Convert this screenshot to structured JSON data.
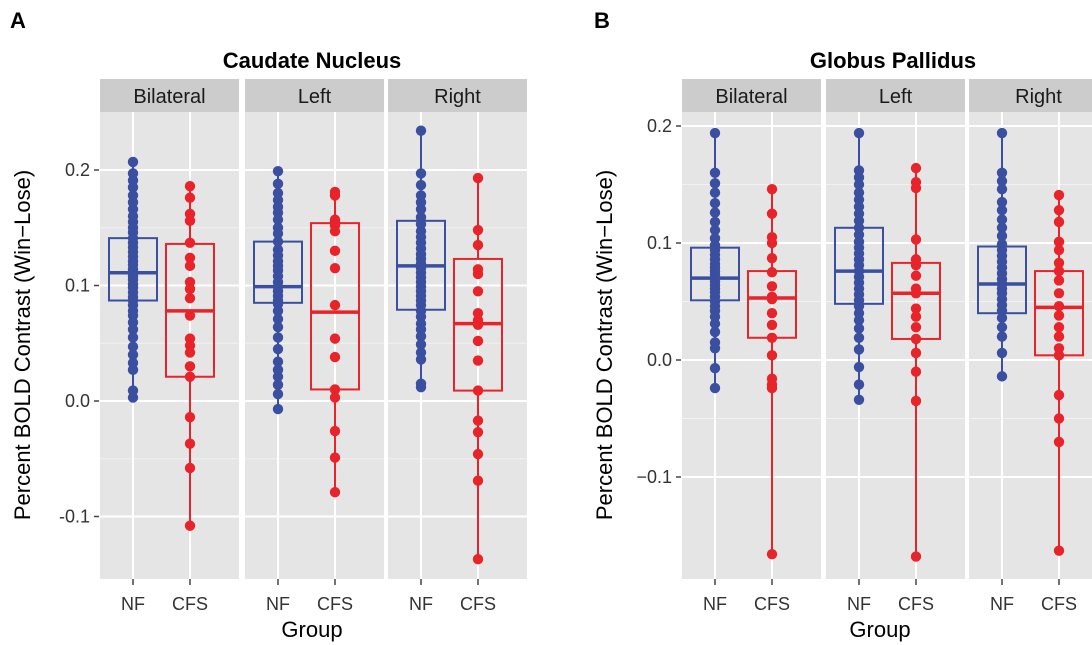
{
  "panel_labels": [
    "A",
    "B"
  ],
  "chart_data": [
    {
      "type": "boxplot",
      "panel_label": "A",
      "title": "Caudate Nucleus",
      "xlabel": "Group",
      "ylabel": "Percent BOLD Contrast (Win−Lose)",
      "ylim": [
        -0.155,
        0.25
      ],
      "yticks": [
        -0.1,
        0.0,
        0.1,
        0.2
      ],
      "ytick_labels": [
        "-0.1",
        "0.0",
        "0.1",
        "0.2"
      ],
      "categories": [
        "NF",
        "CFS"
      ],
      "colors": {
        "NF": "#3a4fa0",
        "CFS": "#e8232a"
      },
      "grid": true,
      "facets": [
        {
          "label": "Bilateral",
          "boxes": {
            "NF": {
              "min": 0.003,
              "q1": 0.087,
              "median": 0.111,
              "q3": 0.141,
              "max": 0.207
            },
            "CFS": {
              "min": -0.108,
              "q1": 0.021,
              "median": 0.078,
              "q3": 0.136,
              "max": 0.186
            }
          },
          "points": {
            "NF": [
              0.207,
              0.197,
              0.191,
              0.185,
              0.178,
              0.172,
              0.166,
              0.16,
              0.155,
              0.15,
              0.146,
              0.141,
              0.137,
              0.133,
              0.129,
              0.125,
              0.121,
              0.118,
              0.114,
              0.111,
              0.108,
              0.105,
              0.101,
              0.098,
              0.094,
              0.09,
              0.087,
              0.083,
              0.078,
              0.074,
              0.068,
              0.062,
              0.055,
              0.047,
              0.04,
              0.033,
              0.027,
              0.009,
              0.003
            ],
            "CFS": [
              0.186,
              0.176,
              0.162,
              0.156,
              0.137,
              0.124,
              0.117,
              0.103,
              0.097,
              0.089,
              0.074,
              0.054,
              0.048,
              0.042,
              0.03,
              0.021,
              -0.014,
              -0.037,
              -0.058,
              -0.108
            ]
          }
        },
        {
          "label": "Left",
          "boxes": {
            "NF": {
              "min": -0.007,
              "q1": 0.085,
              "median": 0.099,
              "q3": 0.138,
              "max": 0.199
            },
            "CFS": {
              "min": -0.079,
              "q1": 0.01,
              "median": 0.077,
              "q3": 0.154,
              "max": 0.181
            }
          },
          "points": {
            "NF": [
              0.199,
              0.188,
              0.18,
              0.174,
              0.168,
              0.163,
              0.157,
              0.15,
              0.145,
              0.138,
              0.131,
              0.126,
              0.121,
              0.117,
              0.113,
              0.108,
              0.103,
              0.099,
              0.095,
              0.091,
              0.087,
              0.084,
              0.078,
              0.071,
              0.064,
              0.055,
              0.045,
              0.034,
              0.027,
              0.021,
              0.014,
              0.006,
              -0.007
            ],
            "CFS": [
              0.181,
              0.178,
              0.157,
              0.155,
              0.152,
              0.147,
              0.13,
              0.115,
              0.083,
              0.054,
              0.038,
              0.01,
              0.003,
              -0.026,
              -0.049,
              -0.079
            ]
          }
        },
        {
          "label": "Right",
          "boxes": {
            "NF": {
              "min": 0.012,
              "q1": 0.079,
              "median": 0.117,
              "q3": 0.156,
              "max": 0.234
            },
            "CFS": {
              "min": -0.137,
              "q1": 0.009,
              "median": 0.067,
              "q3": 0.123,
              "max": 0.193
            }
          },
          "points": {
            "NF": [
              0.234,
              0.197,
              0.187,
              0.178,
              0.172,
              0.166,
              0.159,
              0.153,
              0.147,
              0.142,
              0.137,
              0.132,
              0.127,
              0.123,
              0.119,
              0.115,
              0.111,
              0.107,
              0.103,
              0.099,
              0.095,
              0.091,
              0.087,
              0.083,
              0.078,
              0.073,
              0.067,
              0.062,
              0.056,
              0.049,
              0.042,
              0.036,
              0.015,
              0.012
            ],
            "CFS": [
              0.193,
              0.148,
              0.135,
              0.114,
              0.11,
              0.095,
              0.076,
              0.07,
              0.066,
              0.052,
              0.035,
              0.009,
              -0.017,
              -0.027,
              -0.046,
              -0.069,
              -0.137
            ]
          }
        }
      ]
    },
    {
      "type": "boxplot",
      "panel_label": "B",
      "title": "Globus Pallidus",
      "xlabel": "Group",
      "ylabel": "Percent BOLD Contrast (Win−Lose)",
      "ylim": [
        -0.19,
        0.22
      ],
      "yticks": [
        -0.1,
        0.0,
        0.1,
        0.2
      ],
      "ytick_labels": [
        "−0.1",
        "0.0",
        "0.1",
        "0.2"
      ],
      "categories": [
        "NF",
        "CFS"
      ],
      "colors": {
        "NF": "#3a4fa0",
        "CFS": "#e8232a"
      },
      "grid": true,
      "facets": [
        {
          "label": "Bilateral",
          "boxes": {
            "NF": {
              "min": -0.024,
              "q1": 0.051,
              "median": 0.07,
              "q3": 0.096,
              "max": 0.194
            },
            "CFS": {
              "min": -0.166,
              "q1": 0.019,
              "median": 0.053,
              "q3": 0.076,
              "max": 0.146
            }
          },
          "points": {
            "NF": [
              0.194,
              0.16,
              0.151,
              0.143,
              0.134,
              0.126,
              0.118,
              0.111,
              0.104,
              0.098,
              0.094,
              0.09,
              0.086,
              0.082,
              0.079,
              0.076,
              0.073,
              0.07,
              0.067,
              0.064,
              0.061,
              0.058,
              0.054,
              0.05,
              0.046,
              0.042,
              0.037,
              0.031,
              0.024,
              0.015,
              0.01,
              -0.007,
              -0.024
            ],
            "CFS": [
              0.146,
              0.125,
              0.105,
              0.1,
              0.087,
              0.075,
              0.063,
              0.054,
              0.052,
              0.04,
              0.03,
              0.019,
              0.004,
              -0.016,
              -0.021,
              -0.024,
              -0.166
            ]
          }
        },
        {
          "label": "Left",
          "boxes": {
            "NF": {
              "min": -0.034,
              "q1": 0.048,
              "median": 0.076,
              "q3": 0.113,
              "max": 0.194
            },
            "CFS": {
              "min": -0.168,
              "q1": 0.018,
              "median": 0.057,
              "q3": 0.083,
              "max": 0.164
            }
          },
          "points": {
            "NF": [
              0.194,
              0.162,
              0.156,
              0.15,
              0.143,
              0.137,
              0.131,
              0.125,
              0.119,
              0.113,
              0.107,
              0.101,
              0.096,
              0.091,
              0.086,
              0.081,
              0.076,
              0.071,
              0.066,
              0.061,
              0.056,
              0.051,
              0.046,
              0.04,
              0.034,
              0.027,
              0.019,
              0.009,
              -0.006,
              -0.021,
              -0.034
            ],
            "CFS": [
              0.164,
              0.152,
              0.147,
              0.103,
              0.086,
              0.081,
              0.072,
              0.061,
              0.057,
              0.044,
              0.037,
              0.028,
              0.018,
              0.006,
              -0.01,
              -0.035,
              -0.168
            ]
          }
        },
        {
          "label": "Right",
          "boxes": {
            "NF": {
              "min": -0.014,
              "q1": 0.04,
              "median": 0.065,
              "q3": 0.097,
              "max": 0.194
            },
            "CFS": {
              "min": -0.163,
              "q1": 0.004,
              "median": 0.045,
              "q3": 0.076,
              "max": 0.141
            }
          },
          "points": {
            "NF": [
              0.194,
              0.16,
              0.153,
              0.146,
              0.135,
              0.128,
              0.12,
              0.113,
              0.106,
              0.099,
              0.094,
              0.089,
              0.084,
              0.079,
              0.074,
              0.069,
              0.065,
              0.061,
              0.057,
              0.052,
              0.047,
              0.042,
              0.036,
              0.028,
              0.02,
              0.006,
              -0.014
            ],
            "CFS": [
              0.141,
              0.128,
              0.118,
              0.101,
              0.094,
              0.083,
              0.076,
              0.068,
              0.057,
              0.046,
              0.038,
              0.028,
              0.02,
              0.01,
              0.004,
              -0.03,
              -0.05,
              -0.07,
              -0.163
            ]
          }
        }
      ]
    }
  ]
}
